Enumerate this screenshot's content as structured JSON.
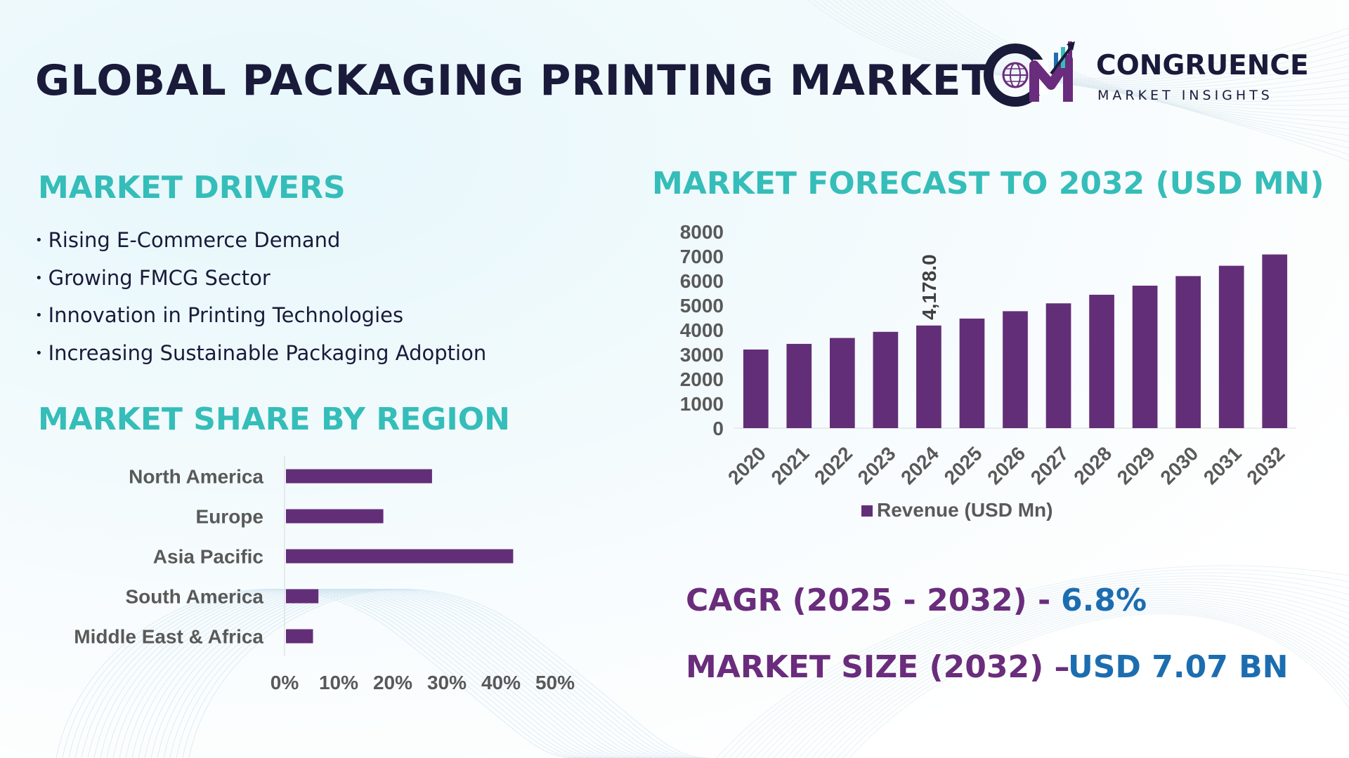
{
  "title": "GLOBAL PACKAGING PRINTING MARKET",
  "logo": {
    "name": "CONGRUENCE",
    "tagline": "MARKET INSIGHTS",
    "monogram": "CM"
  },
  "drivers": {
    "title": "MARKET DRIVERS",
    "items": [
      "Rising E-Commerce Demand",
      "Growing FMCG Sector",
      "Innovation in Printing Technologies",
      "Increasing Sustainable Packaging Adoption"
    ]
  },
  "region": {
    "title": "MARKET SHARE BY REGION"
  },
  "forecast": {
    "title": "MARKET FORECAST TO 2032 (USD MN)"
  },
  "cagr": {
    "label": "CAGR (2025 - 2032) -",
    "value": "6.8%"
  },
  "market_size": {
    "label": "MARKET SIZE (2032) –",
    "value": "USD 7.07 BN"
  },
  "colors": {
    "bar": "#632e78",
    "accent_title": "#35bdb9",
    "highlight_blue": "#1c6db0",
    "dark_text": "#1a1a3a"
  },
  "chart_data": [
    {
      "type": "bar",
      "orientation": "horizontal",
      "title": "MARKET SHARE BY REGION",
      "categories": [
        "North America",
        "Europe",
        "Asia Pacific",
        "South America",
        "Middle East & Africa"
      ],
      "values": [
        0.27,
        0.18,
        0.42,
        0.06,
        0.05
      ],
      "xlim": [
        0,
        0.5
      ],
      "x_ticks": [
        "0%",
        "10%",
        "20%",
        "30%",
        "40%",
        "50%"
      ],
      "grid": false
    },
    {
      "type": "bar",
      "title": "MARKET FORECAST TO 2032 (USD MN)",
      "categories": [
        "2020",
        "2021",
        "2022",
        "2023",
        "2024",
        "2025",
        "2026",
        "2027",
        "2028",
        "2029",
        "2030",
        "2031",
        "2032"
      ],
      "series": [
        {
          "name": "Revenue (USD Mn)",
          "values": [
            3200,
            3430,
            3670,
            3920,
            4178.0,
            4460,
            4760,
            5080,
            5430,
            5800,
            6190,
            6610,
            7070
          ]
        }
      ],
      "ylim": [
        0,
        8000
      ],
      "y_ticks": [
        0,
        1000,
        2000,
        3000,
        4000,
        5000,
        6000,
        7000,
        8000
      ],
      "data_labels": [
        {
          "category": "2024",
          "text": "4,178.0"
        }
      ],
      "legend": "bottom",
      "grid": false
    }
  ]
}
